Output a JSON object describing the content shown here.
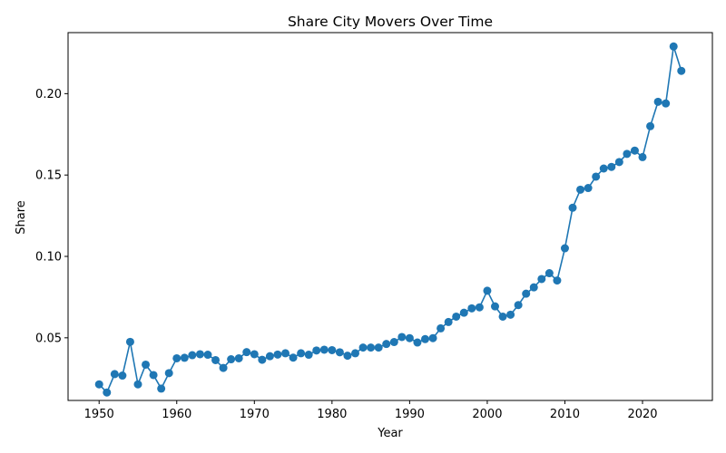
{
  "chart_data": {
    "type": "line",
    "title": "Share City Movers Over Time",
    "xlabel": "Year",
    "ylabel": "Share",
    "xlim": [
      1946,
      2029
    ],
    "ylim": [
      0.0115,
      0.2375
    ],
    "x_ticks": [
      1950,
      1960,
      1970,
      1980,
      1990,
      2000,
      2010,
      2020
    ],
    "y_ticks": [
      0.05,
      0.1,
      0.15,
      0.2
    ],
    "y_tick_labels": [
      "0.05",
      "0.10",
      "0.15",
      "0.20"
    ],
    "grid": false,
    "legend": "none",
    "marker": "circle",
    "color": "#1f77b4",
    "series": [
      {
        "x": [
          1950,
          1951,
          1952,
          1953,
          1954,
          1955,
          1956,
          1957,
          1958,
          1959,
          1960,
          1961,
          1962,
          1963,
          1964,
          1965,
          1966,
          1967,
          1968,
          1969,
          1970,
          1971,
          1972,
          1973,
          1974,
          1975,
          1976,
          1977,
          1978,
          1979,
          1980,
          1981,
          1982,
          1983,
          1984,
          1985,
          1986,
          1987,
          1988,
          1989,
          1990,
          1991,
          1992,
          1993,
          1994,
          1995,
          1996,
          1997,
          1998,
          1999,
          2000,
          2001,
          2002,
          2003,
          2004,
          2005,
          2006,
          2007,
          2008,
          2009,
          2010,
          2011,
          2012,
          2013,
          2014,
          2015,
          2016,
          2017,
          2018,
          2019,
          2020,
          2021,
          2022,
          2023,
          2024,
          2025
        ],
        "values": [
          0.0214,
          0.0164,
          0.0277,
          0.0268,
          0.0475,
          0.0214,
          0.0335,
          0.0271,
          0.0188,
          0.0283,
          0.0374,
          0.0377,
          0.0393,
          0.0399,
          0.0396,
          0.0363,
          0.0315,
          0.0368,
          0.0374,
          0.0412,
          0.0399,
          0.0365,
          0.0387,
          0.0397,
          0.0405,
          0.0378,
          0.0405,
          0.0396,
          0.0422,
          0.0427,
          0.0424,
          0.0411,
          0.039,
          0.0405,
          0.044,
          0.044,
          0.044,
          0.0462,
          0.0474,
          0.0505,
          0.0498,
          0.0471,
          0.0492,
          0.0498,
          0.0558,
          0.0597,
          0.063,
          0.0654,
          0.0681,
          0.0687,
          0.0789,
          0.0693,
          0.063,
          0.0642,
          0.0701,
          0.0771,
          0.081,
          0.0861,
          0.0897,
          0.0852,
          0.105,
          0.1299,
          0.141,
          0.142,
          0.149,
          0.154,
          0.155,
          0.158,
          0.163,
          0.165,
          0.161,
          0.18,
          0.195,
          0.194,
          0.229,
          0.214
        ]
      }
    ]
  }
}
